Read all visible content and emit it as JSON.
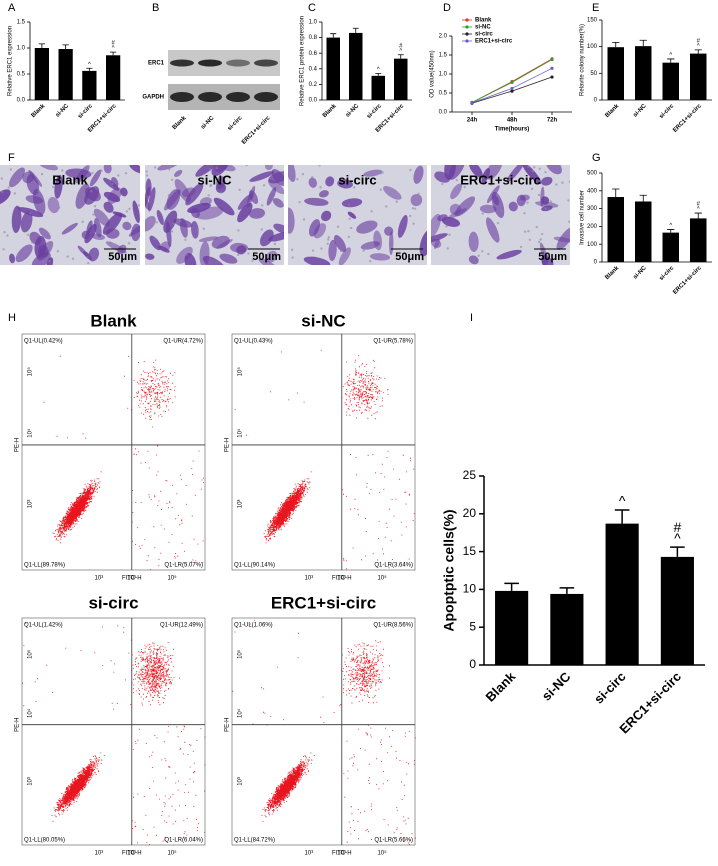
{
  "panel_labels": [
    "A",
    "B",
    "C",
    "D",
    "E",
    "F",
    "G",
    "H",
    "I"
  ],
  "chart_data": [
    {
      "type": "bar",
      "y_label": "Relative ERC1 expression",
      "categories": [
        "Blank",
        "si-NC",
        "si-circ",
        "ERC1+si-circ"
      ],
      "values": [
        1.0,
        0.98,
        0.56,
        0.86
      ],
      "errors": [
        0.08,
        0.08,
        0.05,
        0.06
      ],
      "annotations": [
        null,
        null,
        [
          "^"
        ],
        [
          "^",
          "#"
        ]
      ],
      "color": "#000000",
      "ylim": [
        0,
        1.5
      ],
      "yticks": [
        {
          "value": 0,
          "label": "0.0"
        },
        {
          "value": 0.5,
          "label": "0.5"
        },
        {
          "value": 1,
          "label": "1.0"
        },
        {
          "value": 1.5,
          "label": "1.5"
        }
      ]
    },
    {
      "type": "bar",
      "y_label": "Relative ERC1 protein expression",
      "categories": [
        "Blank",
        "si-NC",
        "si-circ",
        "ERC1+si-circ"
      ],
      "values": [
        0.8,
        0.86,
        0.31,
        0.53
      ],
      "errors": [
        0.05,
        0.06,
        0.03,
        0.05
      ],
      "annotations": [
        null,
        null,
        [
          "^"
        ],
        [
          "^",
          "#"
        ]
      ],
      "color": "#000000",
      "ylim": [
        0,
        1.0
      ],
      "yticks": [
        {
          "value": 0,
          "label": "0.0"
        },
        {
          "value": 0.2,
          "label": "0.2"
        },
        {
          "value": 0.4,
          "label": "0.4"
        },
        {
          "value": 0.6,
          "label": "0.6"
        },
        {
          "value": 0.8,
          "label": "0.8"
        },
        {
          "value": 1,
          "label": "1.0"
        }
      ]
    },
    {
      "type": "line",
      "x_label": "Time(hours)",
      "y_label": "OD value(450nm)",
      "categories": [
        "24h",
        "48h",
        "72h"
      ],
      "series": [
        {
          "name": "Blank",
          "color": "#e8312a",
          "values": [
            0.25,
            0.8,
            1.4
          ]
        },
        {
          "name": "si-NC",
          "color": "#2ca02c",
          "values": [
            0.25,
            0.78,
            1.38
          ]
        },
        {
          "name": "si-circ",
          "color": "#222222",
          "values": [
            0.23,
            0.55,
            0.92
          ]
        },
        {
          "name": "ERC1+si-circ",
          "color": "#6a5acd",
          "values": [
            0.24,
            0.62,
            1.15
          ]
        }
      ],
      "legend": "upper left",
      "ylim": [
        0,
        2.0
      ],
      "yticks": [
        {
          "value": 0,
          "label": "0.0"
        },
        {
          "value": 0.5,
          "label": "0.5"
        },
        {
          "value": 1,
          "label": "1.0"
        },
        {
          "value": 1.5,
          "label": "1.5"
        },
        {
          "value": 2,
          "label": "2.0"
        }
      ]
    },
    {
      "type": "bar",
      "y_label": "Relavite colony number(%)",
      "categories": [
        "Blank",
        "si-NC",
        "si-circ",
        "ERC1+si-circ"
      ],
      "values": [
        99,
        101,
        70,
        87
      ],
      "errors": [
        9,
        11,
        7,
        7
      ],
      "annotations": [
        null,
        null,
        [
          "^"
        ],
        [
          "^",
          "#"
        ]
      ],
      "color": "#000000",
      "ylim": [
        0,
        150
      ],
      "yticks": [
        0,
        50,
        100,
        150
      ]
    },
    {
      "type": "bar",
      "y_label": "Invasive cell number",
      "categories": [
        "Blank",
        "si-NC",
        "si-circ",
        "ERC1+si-circ"
      ],
      "values": [
        365,
        340,
        165,
        245
      ],
      "errors": [
        45,
        35,
        18,
        30
      ],
      "annotations": [
        null,
        null,
        [
          "^"
        ],
        [
          "^",
          "#"
        ]
      ],
      "color": "#000000",
      "ylim": [
        0,
        500
      ],
      "yticks": [
        0,
        100,
        200,
        300,
        400,
        500
      ]
    },
    {
      "type": "bar",
      "y_label": "Apoptptic cells(%)",
      "categories": [
        "Blank",
        "si-NC",
        "si-circ",
        "ERC1+si-circ"
      ],
      "values": [
        9.8,
        9.4,
        18.7,
        14.3
      ],
      "errors": [
        1.0,
        0.8,
        1.8,
        1.3
      ],
      "annotations": [
        null,
        null,
        [
          "^"
        ],
        [
          "^",
          "#"
        ]
      ],
      "color": "#000000",
      "ylim": [
        0,
        25
      ],
      "yticks": [
        0,
        5,
        10,
        15,
        20,
        25
      ]
    }
  ],
  "blot": {
    "rows": [
      "ERC1",
      "GAPDH"
    ],
    "lanes": [
      "Blank",
      "si-NC",
      "si-circ",
      "ERC1+si-circ"
    ]
  },
  "micrographs": [
    {
      "title": "Blank",
      "scale": "50μm"
    },
    {
      "title": "si-NC",
      "scale": "50μm"
    },
    {
      "title": "si-circ",
      "scale": "50μm"
    },
    {
      "title": "ERC1+si-circ",
      "scale": "50μm"
    }
  ],
  "flow": {
    "x_label": "FITC-H",
    "y_label": "PE-H",
    "x_ticks": [
      "10³",
      "10⁴",
      "10⁵"
    ],
    "y_ticks": [
      "10³",
      "10⁴",
      "10⁵"
    ],
    "plots": [
      {
        "title": "Blank",
        "UL": "Q1-UL(0.42%)",
        "UR": "Q1-UR(4.72%)",
        "LL": "Q1-LL(89.78%)",
        "LR": "Q1-LR(5.07%)"
      },
      {
        "title": "si-NC",
        "UL": "Q1-UL(0.43%)",
        "UR": "Q1-UR(5.78%)",
        "LL": "Q1-LL(90.14%)",
        "LR": "Q1-LR(3.64%)"
      },
      {
        "title": "si-circ",
        "UL": "Q1-UL(1.42%)",
        "UR": "Q1-UR(12.49%)",
        "LL": "Q1-LL(80.05%)",
        "LR": "Q1-LR(6.04%)"
      },
      {
        "title": "ERC1+si-circ",
        "UL": "Q1-UL(1.06%)",
        "UR": "Q1-UR(8.56%)",
        "LL": "Q1-LL(84.72%)",
        "LR": "Q1-LR(5.66%)"
      }
    ]
  }
}
